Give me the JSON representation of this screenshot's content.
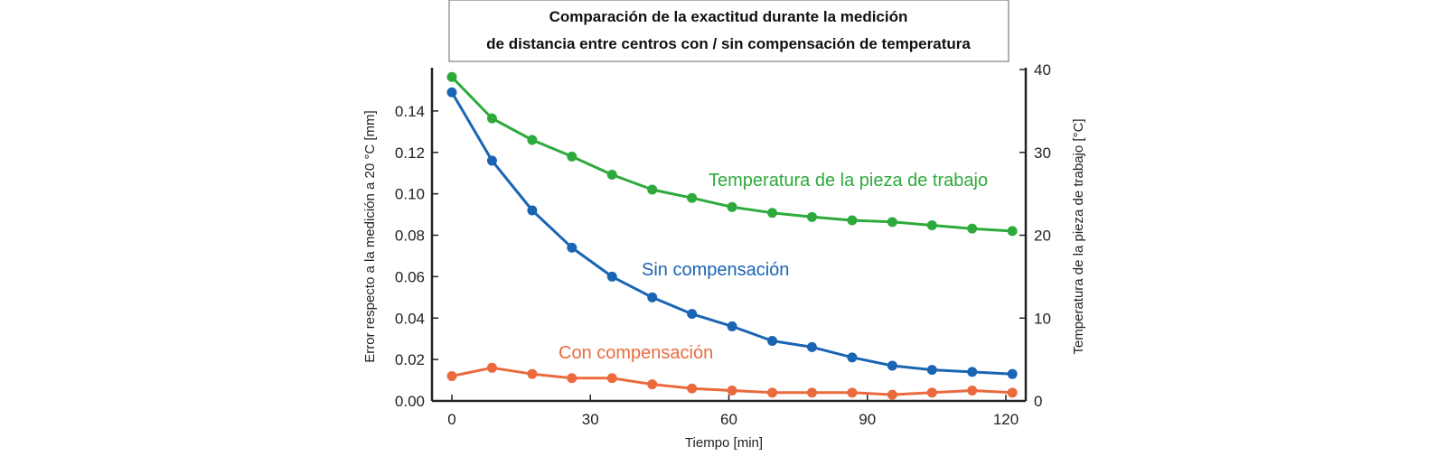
{
  "chart_data": {
    "type": "line",
    "title": [
      "Comparación de la exactitud durante la medición",
      "de distancia entre centros con / sin compensación de temperatura"
    ],
    "xlabel": "Tiempo [min]",
    "ylabel": "Error respecto a la medición a 20 °C [mm]",
    "y2label": "Temperatura de la pieza de trabajo [°C]",
    "xlim": [
      0,
      120
    ],
    "ylim": [
      0,
      0.16
    ],
    "y2lim": [
      0,
      40
    ],
    "xticks": [
      "0",
      "30",
      "60",
      "90",
      "120"
    ],
    "xtick_values": [
      0,
      30,
      60,
      90,
      120
    ],
    "yticks": [
      "0.00",
      "0.02",
      "0.04",
      "0.06",
      "0.08",
      "0.10",
      "0.12",
      "0.14"
    ],
    "ytick_values": [
      0,
      0.02,
      0.04,
      0.06,
      0.08,
      0.1,
      0.12,
      0.14
    ],
    "y2ticks": [
      "0",
      "10",
      "20",
      "30",
      "40"
    ],
    "y2tick_values": [
      0,
      10,
      20,
      30,
      40
    ],
    "grid": false,
    "x": [
      0,
      8.7,
      17.4,
      26,
      34.7,
      43.4,
      52,
      60.7,
      69.4,
      78,
      86.7,
      95.4,
      104,
      112.7,
      121.4
    ],
    "series": [
      {
        "name": "Temperatura de la pieza de trabajo",
        "axis": "right",
        "color": "#2eaa3c",
        "values": [
          39.1,
          34.1,
          31.5,
          29.5,
          27.3,
          25.5,
          24.5,
          23.4,
          22.7,
          22.2,
          21.8,
          21.6,
          21.2,
          20.8,
          20.5
        ]
      },
      {
        "name": "Sin compensación",
        "axis": "left",
        "color": "#1a64b4",
        "values": [
          0.149,
          0.116,
          0.092,
          0.074,
          0.06,
          0.05,
          0.042,
          0.036,
          0.029,
          0.026,
          0.021,
          0.017,
          0.015,
          0.014,
          0.013
        ]
      },
      {
        "name": "Con compensación",
        "axis": "left",
        "color": "#ea6a3e",
        "values": [
          0.012,
          0.016,
          0.013,
          0.011,
          0.011,
          0.008,
          0.006,
          0.005,
          0.004,
          0.004,
          0.004,
          0.003,
          0.004,
          0.005,
          0.004
        ]
      }
    ]
  }
}
